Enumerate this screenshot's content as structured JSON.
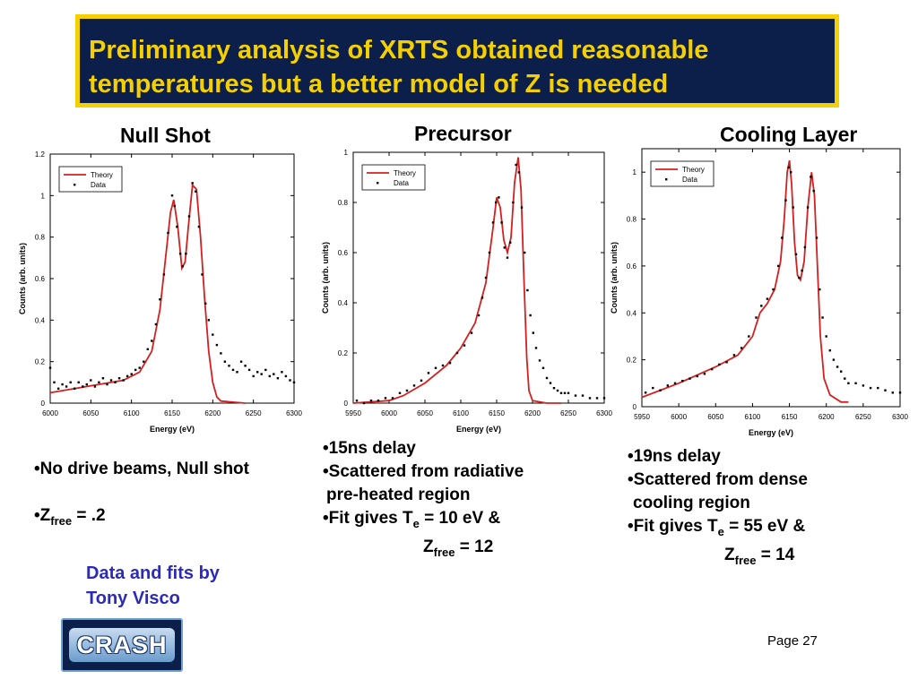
{
  "title": {
    "line1": "Preliminary analysis of XRTS obtained reasonable",
    "line2": "temperatures but a better model of Z is needed"
  },
  "panels": [
    {
      "heading": "Null Shot"
    },
    {
      "heading": "Precursor"
    },
    {
      "heading": "Cooling Layer"
    }
  ],
  "null_shot_notes": {
    "b1": "No drive beams, Null shot",
    "b2_prefix": "Z",
    "b2_sub": "free",
    "b2_suffix": " = .2"
  },
  "precursor_notes": {
    "b1": "15ns delay",
    "b2": "Scattered from radiative",
    "b2_cont": "pre-heated region",
    "b3": "Fit gives T",
    "b3_sub": "e",
    "b3_suffix": " = 10 eV &",
    "b4_prefix": "Z",
    "b4_sub": "free",
    "b4_suffix": " = 12"
  },
  "cooling_notes": {
    "b1": "19ns delay",
    "b2": "Scattered from dense",
    "b2_cont": "cooling region",
    "b3": "Fit gives T",
    "b3_sub": "e",
    "b3_suffix": " = 55 eV &",
    "b4_prefix": "Z",
    "b4_sub": "free",
    "b4_suffix": " = 14"
  },
  "bullet_char": "•",
  "credit": {
    "line1": "Data and fits by",
    "line2": "Tony Visco"
  },
  "logo": {
    "text": "CRASH"
  },
  "page": "Page 27",
  "colors": {
    "theory": "#d42020",
    "data": "#000000",
    "title_bg": "#0b1f4a",
    "title_fg": "#f4d000",
    "credit": "#2b2bb8"
  },
  "chart_data": [
    {
      "type": "scatter",
      "name": "null-shot",
      "xlabel": "Energy (eV)",
      "ylabel": "Counts (arb. units)",
      "xlim": [
        6000,
        6300
      ],
      "ylim": [
        0,
        1.2
      ],
      "xticks": [
        6000,
        6050,
        6100,
        6150,
        6200,
        6250,
        6300
      ],
      "yticks": [
        0,
        0.2,
        0.4,
        0.6,
        0.8,
        1,
        1.2
      ],
      "ytick_labels": [
        "0",
        "0.2",
        "0.4",
        "0.6",
        "0.8",
        "1",
        "1.2"
      ],
      "legend": [
        "Theory",
        "Data"
      ],
      "legend_position": "top-left",
      "theory": [
        [
          6000,
          0.05
        ],
        [
          6030,
          0.07
        ],
        [
          6060,
          0.09
        ],
        [
          6090,
          0.11
        ],
        [
          6110,
          0.15
        ],
        [
          6125,
          0.25
        ],
        [
          6135,
          0.45
        ],
        [
          6142,
          0.7
        ],
        [
          6148,
          0.92
        ],
        [
          6152,
          0.98
        ],
        [
          6157,
          0.85
        ],
        [
          6162,
          0.65
        ],
        [
          6166,
          0.68
        ],
        [
          6170,
          0.85
        ],
        [
          6175,
          1.05
        ],
        [
          6180,
          1.03
        ],
        [
          6185,
          0.8
        ],
        [
          6190,
          0.5
        ],
        [
          6195,
          0.25
        ],
        [
          6200,
          0.1
        ],
        [
          6205,
          0.03
        ],
        [
          6210,
          0.01
        ],
        [
          6240,
          0.0
        ]
      ],
      "data": [
        [
          6000,
          0.17
        ],
        [
          6005,
          0.1
        ],
        [
          6010,
          0.07
        ],
        [
          6015,
          0.09
        ],
        [
          6020,
          0.08
        ],
        [
          6025,
          0.1
        ],
        [
          6030,
          0.07
        ],
        [
          6035,
          0.1
        ],
        [
          6040,
          0.08
        ],
        [
          6045,
          0.09
        ],
        [
          6050,
          0.11
        ],
        [
          6055,
          0.08
        ],
        [
          6060,
          0.1
        ],
        [
          6065,
          0.12
        ],
        [
          6070,
          0.09
        ],
        [
          6075,
          0.11
        ],
        [
          6080,
          0.1
        ],
        [
          6085,
          0.12
        ],
        [
          6090,
          0.11
        ],
        [
          6095,
          0.13
        ],
        [
          6100,
          0.14
        ],
        [
          6105,
          0.16
        ],
        [
          6110,
          0.17
        ],
        [
          6115,
          0.2
        ],
        [
          6120,
          0.26
        ],
        [
          6125,
          0.3
        ],
        [
          6130,
          0.38
        ],
        [
          6135,
          0.5
        ],
        [
          6140,
          0.62
        ],
        [
          6145,
          0.82
        ],
        [
          6150,
          1.0
        ],
        [
          6153,
          0.95
        ],
        [
          6156,
          0.85
        ],
        [
          6160,
          0.72
        ],
        [
          6163,
          0.66
        ],
        [
          6167,
          0.72
        ],
        [
          6171,
          0.9
        ],
        [
          6175,
          1.06
        ],
        [
          6179,
          1.02
        ],
        [
          6183,
          0.85
        ],
        [
          6187,
          0.62
        ],
        [
          6191,
          0.48
        ],
        [
          6195,
          0.4
        ],
        [
          6200,
          0.33
        ],
        [
          6205,
          0.28
        ],
        [
          6210,
          0.24
        ],
        [
          6215,
          0.2
        ],
        [
          6220,
          0.18
        ],
        [
          6225,
          0.16
        ],
        [
          6230,
          0.15
        ],
        [
          6235,
          0.2
        ],
        [
          6240,
          0.18
        ],
        [
          6245,
          0.16
        ],
        [
          6250,
          0.13
        ],
        [
          6255,
          0.15
        ],
        [
          6260,
          0.14
        ],
        [
          6265,
          0.16
        ],
        [
          6270,
          0.13
        ],
        [
          6275,
          0.14
        ],
        [
          6280,
          0.12
        ],
        [
          6285,
          0.15
        ],
        [
          6290,
          0.13
        ],
        [
          6295,
          0.11
        ],
        [
          6300,
          0.1
        ]
      ]
    },
    {
      "type": "scatter",
      "name": "precursor",
      "xlabel": "Energy (eV)",
      "ylabel": "Counts (arb. units)",
      "xlim": [
        5950,
        6300
      ],
      "ylim": [
        0,
        1.0
      ],
      "xticks": [
        5950,
        6000,
        6050,
        6100,
        6150,
        6200,
        6250,
        6300
      ],
      "yticks": [
        0,
        0.2,
        0.4,
        0.6,
        0.8,
        1
      ],
      "ytick_labels": [
        "0",
        "0.2",
        "0.4",
        "0.6",
        "0.8",
        "1"
      ],
      "legend": [
        "Theory",
        "Data"
      ],
      "legend_position": "top-left",
      "theory": [
        [
          5950,
          0.0
        ],
        [
          6000,
          0.01
        ],
        [
          6020,
          0.03
        ],
        [
          6050,
          0.08
        ],
        [
          6080,
          0.15
        ],
        [
          6100,
          0.22
        ],
        [
          6120,
          0.32
        ],
        [
          6135,
          0.48
        ],
        [
          6145,
          0.7
        ],
        [
          6150,
          0.82
        ],
        [
          6155,
          0.78
        ],
        [
          6160,
          0.65
        ],
        [
          6165,
          0.6
        ],
        [
          6170,
          0.66
        ],
        [
          6175,
          0.88
        ],
        [
          6180,
          0.98
        ],
        [
          6184,
          0.85
        ],
        [
          6188,
          0.5
        ],
        [
          6192,
          0.18
        ],
        [
          6195,
          0.05
        ],
        [
          6200,
          0.01
        ],
        [
          6220,
          0.0
        ],
        [
          6240,
          0.0
        ]
      ],
      "data": [
        [
          5955,
          0.01
        ],
        [
          5965,
          0.0
        ],
        [
          5975,
          0.01
        ],
        [
          5985,
          0.01
        ],
        [
          5995,
          0.02
        ],
        [
          6005,
          0.02
        ],
        [
          6015,
          0.04
        ],
        [
          6025,
          0.05
        ],
        [
          6035,
          0.07
        ],
        [
          6045,
          0.09
        ],
        [
          6055,
          0.12
        ],
        [
          6065,
          0.14
        ],
        [
          6075,
          0.15
        ],
        [
          6085,
          0.16
        ],
        [
          6095,
          0.2
        ],
        [
          6105,
          0.23
        ],
        [
          6115,
          0.28
        ],
        [
          6125,
          0.35
        ],
        [
          6130,
          0.42
        ],
        [
          6135,
          0.5
        ],
        [
          6140,
          0.6
        ],
        [
          6145,
          0.72
        ],
        [
          6149,
          0.8
        ],
        [
          6153,
          0.82
        ],
        [
          6157,
          0.72
        ],
        [
          6161,
          0.62
        ],
        [
          6165,
          0.58
        ],
        [
          6169,
          0.64
        ],
        [
          6173,
          0.8
        ],
        [
          6177,
          0.95
        ],
        [
          6181,
          0.92
        ],
        [
          6185,
          0.78
        ],
        [
          6189,
          0.6
        ],
        [
          6193,
          0.45
        ],
        [
          6197,
          0.35
        ],
        [
          6201,
          0.28
        ],
        [
          6205,
          0.22
        ],
        [
          6210,
          0.17
        ],
        [
          6215,
          0.14
        ],
        [
          6220,
          0.1
        ],
        [
          6225,
          0.08
        ],
        [
          6230,
          0.06
        ],
        [
          6235,
          0.05
        ],
        [
          6240,
          0.04
        ],
        [
          6245,
          0.04
        ],
        [
          6250,
          0.04
        ],
        [
          6260,
          0.03
        ],
        [
          6270,
          0.03
        ],
        [
          6280,
          0.02
        ],
        [
          6290,
          0.02
        ],
        [
          6300,
          0.02
        ]
      ]
    },
    {
      "type": "scatter",
      "name": "cooling-layer",
      "xlabel": "Energy (eV)",
      "ylabel": "Counts (arb. units)",
      "xlim": [
        5950,
        6300
      ],
      "ylim": [
        0,
        1.1
      ],
      "xticks": [
        5950,
        6000,
        6050,
        6100,
        6150,
        6200,
        6250,
        6300
      ],
      "yticks": [
        0,
        0.2,
        0.4,
        0.6,
        0.8,
        1
      ],
      "ytick_labels": [
        "0",
        "0.2",
        "0.4",
        "0.6",
        "0.8",
        "1"
      ],
      "legend": [
        "Theory",
        "Data"
      ],
      "legend_position": "top-left",
      "theory": [
        [
          5950,
          0.04
        ],
        [
          6000,
          0.1
        ],
        [
          6050,
          0.17
        ],
        [
          6080,
          0.22
        ],
        [
          6100,
          0.3
        ],
        [
          6110,
          0.4
        ],
        [
          6120,
          0.44
        ],
        [
          6130,
          0.5
        ],
        [
          6138,
          0.62
        ],
        [
          6143,
          0.8
        ],
        [
          6147,
          1.0
        ],
        [
          6150,
          1.05
        ],
        [
          6153,
          0.95
        ],
        [
          6157,
          0.7
        ],
        [
          6161,
          0.56
        ],
        [
          6165,
          0.54
        ],
        [
          6170,
          0.62
        ],
        [
          6175,
          0.85
        ],
        [
          6180,
          1.0
        ],
        [
          6184,
          0.9
        ],
        [
          6188,
          0.6
        ],
        [
          6192,
          0.3
        ],
        [
          6197,
          0.12
        ],
        [
          6205,
          0.05
        ],
        [
          6220,
          0.02
        ],
        [
          6230,
          0.02
        ]
      ],
      "data": [
        [
          5955,
          0.06
        ],
        [
          5965,
          0.08
        ],
        [
          5975,
          0.07
        ],
        [
          5985,
          0.09
        ],
        [
          5995,
          0.1
        ],
        [
          6005,
          0.11
        ],
        [
          6015,
          0.12
        ],
        [
          6025,
          0.13
        ],
        [
          6035,
          0.14
        ],
        [
          6045,
          0.16
        ],
        [
          6055,
          0.18
        ],
        [
          6065,
          0.19
        ],
        [
          6075,
          0.22
        ],
        [
          6085,
          0.25
        ],
        [
          6095,
          0.3
        ],
        [
          6105,
          0.38
        ],
        [
          6112,
          0.43
        ],
        [
          6120,
          0.46
        ],
        [
          6128,
          0.5
        ],
        [
          6135,
          0.6
        ],
        [
          6140,
          0.72
        ],
        [
          6145,
          0.88
        ],
        [
          6149,
          1.02
        ],
        [
          6152,
          1.0
        ],
        [
          6155,
          0.85
        ],
        [
          6159,
          0.65
        ],
        [
          6163,
          0.55
        ],
        [
          6167,
          0.58
        ],
        [
          6171,
          0.68
        ],
        [
          6175,
          0.85
        ],
        [
          6179,
          0.98
        ],
        [
          6183,
          0.92
        ],
        [
          6187,
          0.72
        ],
        [
          6191,
          0.5
        ],
        [
          6195,
          0.38
        ],
        [
          6200,
          0.3
        ],
        [
          6205,
          0.24
        ],
        [
          6210,
          0.2
        ],
        [
          6215,
          0.17
        ],
        [
          6220,
          0.15
        ],
        [
          6225,
          0.12
        ],
        [
          6230,
          0.1
        ],
        [
          6240,
          0.1
        ],
        [
          6250,
          0.09
        ],
        [
          6260,
          0.08
        ],
        [
          6270,
          0.08
        ],
        [
          6280,
          0.07
        ],
        [
          6290,
          0.06
        ],
        [
          6300,
          0.06
        ]
      ]
    }
  ]
}
